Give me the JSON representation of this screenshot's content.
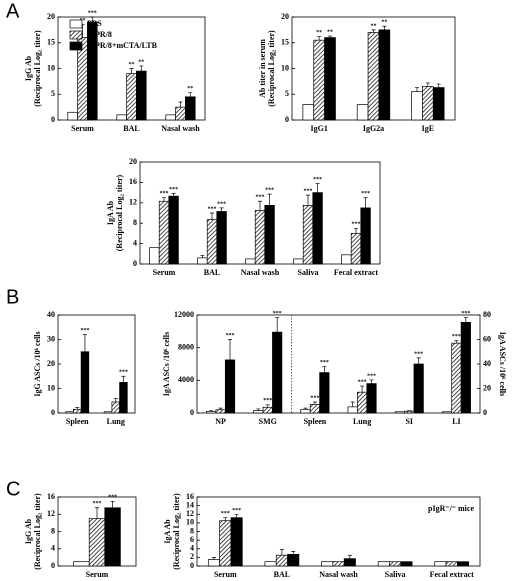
{
  "panels": [
    "A",
    "B",
    "C"
  ],
  "chart_data": [
    {
      "type": "bar",
      "ylabel": [
        "IgG Ab",
        "(Reciprocal Log₂ titer)"
      ],
      "categories": [
        "Serum",
        "BAL",
        "Nasal wash"
      ],
      "ylim": [
        0,
        20
      ],
      "yticks": [
        0,
        5,
        10,
        15,
        20
      ],
      "legend": "upper left",
      "series": [
        {
          "name": "PBS",
          "color": "#ffffff",
          "values": [
            1.5,
            1,
            1
          ],
          "errors": [
            null,
            null,
            null
          ],
          "sig": [
            null,
            null,
            null
          ]
        },
        {
          "name": "A/PR/8",
          "color": "#000000",
          "pattern": "hatch",
          "values": [
            16,
            9,
            2.5
          ],
          "errors": [
            2.5,
            1,
            1
          ],
          "sig": [
            "**",
            "**",
            null
          ]
        },
        {
          "name": "A/PR/8+mCTA/LTB",
          "color": "#000000",
          "values": [
            19,
            9.5,
            4.5
          ],
          "errors": [
            1,
            1,
            0.8
          ],
          "sig": [
            "***",
            "**",
            "**"
          ]
        }
      ]
    },
    {
      "type": "bar",
      "ylabel": [
        "Ab titer in serum",
        "(Reciprocal Log₂ titer)"
      ],
      "categories": [
        "IgG1",
        "IgG2a",
        "IgE"
      ],
      "ylim": [
        0,
        20
      ],
      "yticks": [
        0,
        5,
        10,
        15,
        20
      ],
      "series": [
        {
          "color": "#ffffff",
          "values": [
            3,
            3,
            5.5
          ],
          "errors": [
            null,
            null,
            0.8
          ],
          "sig": [
            null,
            null,
            null
          ]
        },
        {
          "color": "#000000",
          "pattern": "hatch",
          "values": [
            15.5,
            17,
            6.5
          ],
          "errors": [
            0.7,
            0.5,
            0.7
          ],
          "sig": [
            "**",
            "**",
            null
          ]
        },
        {
          "color": "#000000",
          "values": [
            16,
            17.5,
            6.3
          ],
          "errors": [
            0.3,
            0.7,
            0.7
          ],
          "sig": [
            "**",
            "**",
            null
          ]
        }
      ]
    },
    {
      "type": "bar",
      "ylabel": [
        "IgA Ab",
        "(Reciprocal Log₂ titer)"
      ],
      "categories": [
        "Serum",
        "BAL",
        "Nasal wash",
        "Saliva",
        "Fecal extract"
      ],
      "ylim": [
        0,
        20
      ],
      "yticks": [
        0,
        4,
        8,
        12,
        16,
        20
      ],
      "series": [
        {
          "color": "#ffffff",
          "values": [
            3.2,
            1.2,
            1,
            1,
            1.8
          ],
          "errors": [
            null,
            0.5,
            null,
            null,
            null
          ],
          "sig": [
            null,
            null,
            null,
            null,
            null
          ]
        },
        {
          "color": "#000000",
          "pattern": "hatch",
          "values": [
            12.3,
            8.7,
            10.5,
            11.5,
            6
          ],
          "errors": [
            0.7,
            1.3,
            1.8,
            2,
            1
          ],
          "sig": [
            "***",
            "***",
            "***",
            "***",
            "***"
          ]
        },
        {
          "color": "#000000",
          "values": [
            13.3,
            10.3,
            11.5,
            14,
            11
          ],
          "errors": [
            0.5,
            0.7,
            2.2,
            1.8,
            2
          ],
          "sig": [
            "***",
            "***",
            "***",
            "***",
            "***"
          ]
        }
      ]
    },
    {
      "type": "bar",
      "ylabel": [
        "IgG ASCs /10⁶ cells"
      ],
      "categories": [
        "Spleen",
        "Lung"
      ],
      "ylim": [
        0,
        40
      ],
      "yticks": [
        0,
        10,
        20,
        30,
        40
      ],
      "series": [
        {
          "color": "#ffffff",
          "values": [
            0.5,
            0.5
          ],
          "errors": [
            null,
            null
          ],
          "sig": [
            null,
            null
          ]
        },
        {
          "color": "#000000",
          "pattern": "hatch",
          "values": [
            1.5,
            4.5
          ],
          "errors": [
            0.7,
            1.5
          ],
          "sig": [
            null,
            null
          ]
        },
        {
          "color": "#000000",
          "values": [
            25,
            12.5
          ],
          "errors": [
            7,
            2.5
          ],
          "sig": [
            "***",
            "***"
          ]
        }
      ]
    },
    {
      "type": "bar",
      "ylabel": [
        "IgA ASCs /10⁶ cells"
      ],
      "y2label": [
        "IgA ASCs /10⁶ cells"
      ],
      "categories": [
        "NP",
        "SMG",
        "Spleen",
        "Lung",
        "SI",
        "LI"
      ],
      "category_axis": [
        "y",
        "y",
        "y2",
        "y2",
        "y2",
        "y2"
      ],
      "divider_after": 1,
      "ylim": [
        0,
        12000
      ],
      "yticks": [
        0,
        4000,
        8000,
        12000
      ],
      "y2lim": [
        0,
        80
      ],
      "y2ticks": [
        0,
        20,
        40,
        60,
        80
      ],
      "series": [
        {
          "color": "#ffffff",
          "values": [
            200,
            300,
            3,
            5,
            1,
            1
          ],
          "errors": [
            100,
            200,
            1,
            4,
            null,
            null
          ],
          "sig": [
            null,
            null,
            null,
            null,
            null,
            null
          ]
        },
        {
          "color": "#000000",
          "pattern": "hatch",
          "values": [
            400,
            700,
            7,
            17,
            1.5,
            57
          ],
          "errors": [
            200,
            300,
            2,
            5,
            0.5,
            2
          ],
          "sig": [
            null,
            "***",
            "***",
            "***",
            null,
            "***"
          ]
        },
        {
          "color": "#000000",
          "values": [
            6500,
            9900,
            33,
            24,
            40,
            74
          ],
          "errors": [
            2500,
            1800,
            5,
            3,
            5,
            4
          ],
          "sig": [
            "***",
            "***",
            "***",
            "***",
            "***",
            "***"
          ]
        }
      ]
    },
    {
      "type": "bar",
      "ylabel": [
        "IgG Ab",
        "(Reciprocal Log₂ titer)"
      ],
      "categories": [
        "Serum"
      ],
      "ylim": [
        0,
        16
      ],
      "yticks": [
        0,
        4,
        8,
        12,
        16
      ],
      "series": [
        {
          "color": "#ffffff",
          "values": [
            1
          ],
          "errors": [
            null
          ],
          "sig": [
            null
          ]
        },
        {
          "color": "#000000",
          "pattern": "hatch",
          "values": [
            11
          ],
          "errors": [
            2.5
          ],
          "sig": [
            "***"
          ]
        },
        {
          "color": "#000000",
          "values": [
            13.5
          ],
          "errors": [
            1.5
          ],
          "sig": [
            "***"
          ]
        }
      ]
    },
    {
      "type": "bar",
      "ylabel": [
        "IgA Ab",
        "(Reciprocal Log₂ titer)"
      ],
      "annotation": "pIgR⁻/⁻ mice",
      "categories": [
        "Serum",
        "BAL",
        "Nasal wash",
        "Saliva",
        "Fecal extract"
      ],
      "ylim": [
        0,
        16
      ],
      "yticks": [
        0,
        2,
        4,
        6,
        8,
        10,
        12,
        14,
        16
      ],
      "series": [
        {
          "color": "#ffffff",
          "values": [
            1.5,
            1,
            1,
            1,
            1
          ],
          "errors": [
            0.5,
            null,
            null,
            null,
            null
          ],
          "sig": [
            null,
            null,
            null,
            null,
            null
          ]
        },
        {
          "color": "#000000",
          "pattern": "hatch",
          "values": [
            10.5,
            2.5,
            1,
            1,
            1
          ],
          "errors": [
            0.7,
            1.3,
            null,
            null,
            null
          ],
          "sig": [
            "***",
            null,
            null,
            null,
            null
          ]
        },
        {
          "color": "#000000",
          "values": [
            11.2,
            2.7,
            1.7,
            1,
            1
          ],
          "errors": [
            0.7,
            0.7,
            0.8,
            null,
            null
          ],
          "sig": [
            "***",
            null,
            null,
            null,
            null
          ]
        }
      ]
    }
  ]
}
